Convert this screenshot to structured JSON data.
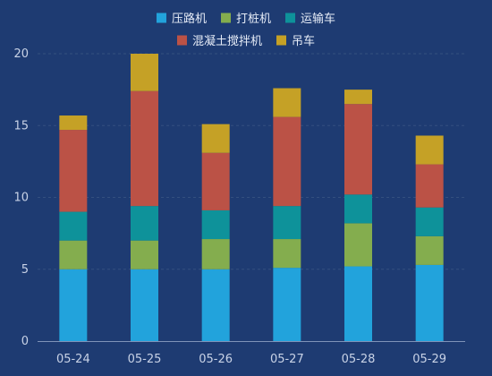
{
  "chart_data": {
    "type": "bar",
    "stacked": true,
    "categories": [
      "05-24",
      "05-25",
      "05-26",
      "05-27",
      "05-28",
      "05-29"
    ],
    "series": [
      {
        "name": "压路机",
        "color": "#22a3dc",
        "values": [
          5,
          5,
          5,
          5.1,
          5.2,
          5.3
        ]
      },
      {
        "name": "打桩机",
        "color": "#84ad4e",
        "values": [
          2,
          2,
          2.1,
          2,
          3,
          2
        ]
      },
      {
        "name": "运输车",
        "color": "#0e929a",
        "values": [
          2,
          2.4,
          2,
          2.3,
          2,
          2
        ]
      },
      {
        "name": "混凝土搅拌机",
        "color": "#bb5246",
        "values": [
          5.7,
          8,
          4,
          6.2,
          6.3,
          3
        ]
      },
      {
        "name": "吊车",
        "color": "#c5a126",
        "values": [
          1,
          2.6,
          2,
          2,
          1,
          2
        ]
      }
    ],
    "ylim": [
      0,
      20
    ],
    "yticks": [
      0,
      5,
      10,
      15,
      20
    ],
    "grid": true,
    "legend_position": "top-center",
    "title": "",
    "xlabel": "",
    "ylabel": ""
  }
}
